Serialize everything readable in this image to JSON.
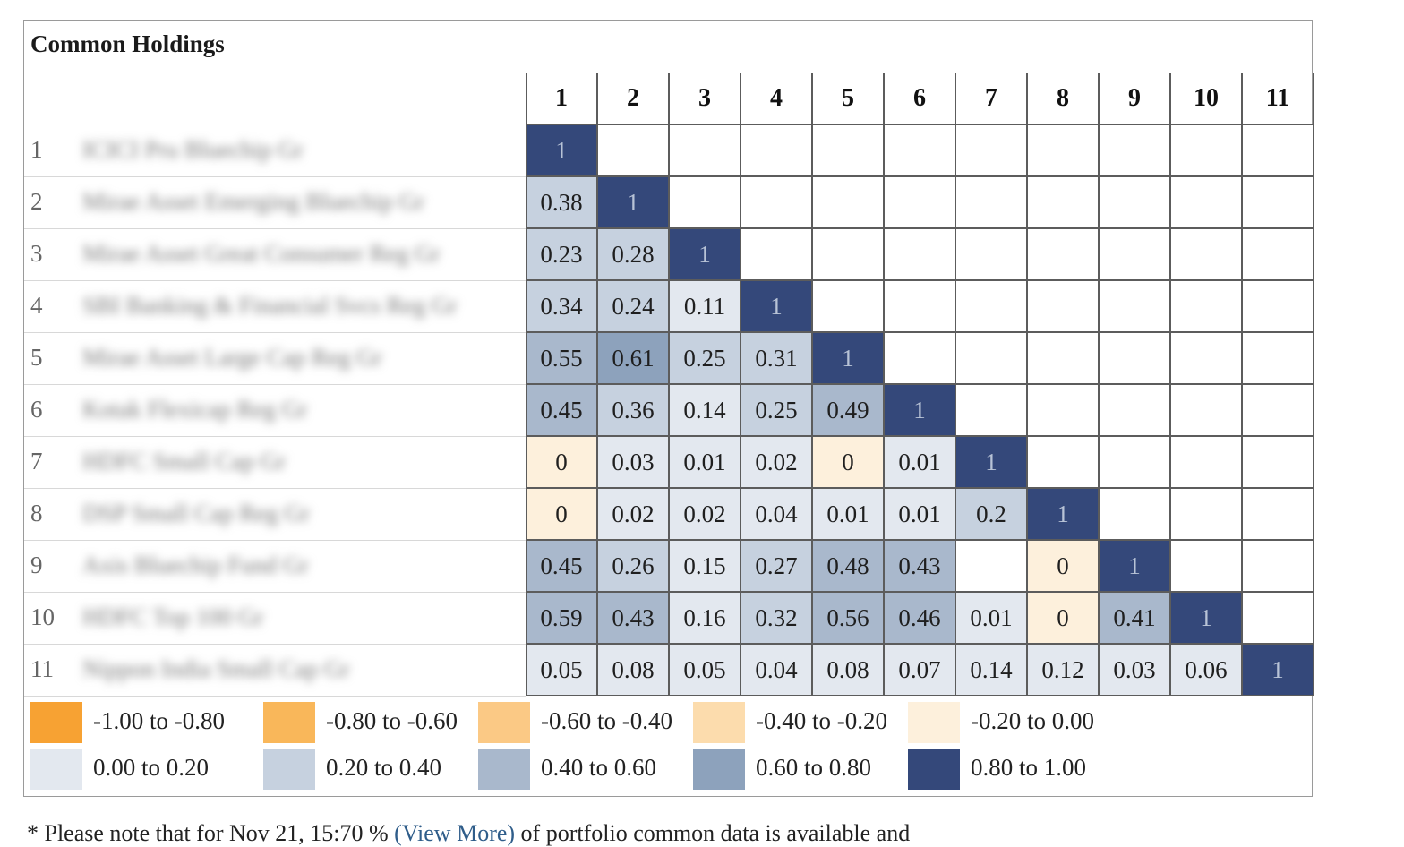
{
  "table": {
    "title": "Common Holdings"
  },
  "chart_data": {
    "type": "heatmap",
    "title": "Common Holdings",
    "columns": [
      "1",
      "2",
      "3",
      "4",
      "5",
      "6",
      "7",
      "8",
      "9",
      "10",
      "11"
    ],
    "rows": [
      {
        "num": "1",
        "label": "ICICI Pru Bluechip Gr"
      },
      {
        "num": "2",
        "label": "Mirae Asset Emerging Bluechip Gr"
      },
      {
        "num": "3",
        "label": "Mirae Asset Great Consumer Reg Gr"
      },
      {
        "num": "4",
        "label": "SBI Banking & Financial Svcs Reg Gr"
      },
      {
        "num": "5",
        "label": "Mirae Asset Large Cap Reg Gr"
      },
      {
        "num": "6",
        "label": "Kotak Flexicap Reg Gr"
      },
      {
        "num": "7",
        "label": "HDFC Small Cap Gr"
      },
      {
        "num": "8",
        "label": "DSP Small Cap Reg Gr"
      },
      {
        "num": "9",
        "label": "Axis Bluechip Fund Gr"
      },
      {
        "num": "10",
        "label": "HDFC Top 100 Gr"
      },
      {
        "num": "11",
        "label": "Nippon India Small Cap Gr"
      }
    ],
    "values": [
      [
        "1"
      ],
      [
        "0.38",
        "1"
      ],
      [
        "0.23",
        "0.28",
        "1"
      ],
      [
        "0.34",
        "0.24",
        "0.11",
        "1"
      ],
      [
        "0.55",
        "0.61",
        "0.25",
        "0.31",
        "1"
      ],
      [
        "0.45",
        "0.36",
        "0.14",
        "0.25",
        "0.49",
        "1"
      ],
      [
        "0",
        "0.03",
        "0.01",
        "0.02",
        "0",
        "0.01",
        "1"
      ],
      [
        "0",
        "0.02",
        "0.02",
        "0.04",
        "0.01",
        "0.01",
        "0.2",
        "1"
      ],
      [
        "0.45",
        "0.26",
        "0.15",
        "0.27",
        "0.48",
        "0.43",
        "",
        "0",
        "1"
      ],
      [
        "0.59",
        "0.43",
        "0.16",
        "0.32",
        "0.56",
        "0.46",
        "0.01",
        "0",
        "0.41",
        "1"
      ],
      [
        "0.05",
        "0.08",
        "0.05",
        "0.04",
        "0.08",
        "0.07",
        "0.14",
        "0.12",
        "0.03",
        "0.06",
        "1"
      ]
    ],
    "legend": [
      {
        "label": "-1.00 to -0.80",
        "color": "#f7a233"
      },
      {
        "label": "-0.80 to -0.60",
        "color": "#f9b75a"
      },
      {
        "label": "-0.60 to -0.40",
        "color": "#fbc985"
      },
      {
        "label": "-0.40 to -0.20",
        "color": "#fcdcad"
      },
      {
        "label": "-0.20 to 0.00",
        "color": "#fdf0dc"
      },
      {
        "label": "0.00 to 0.20",
        "color": "#e3e8ef"
      },
      {
        "label": "0.20 to 0.40",
        "color": "#c6d1df"
      },
      {
        "label": "0.40 to 0.60",
        "color": "#a9b8cc"
      },
      {
        "label": "0.60 to 0.80",
        "color": "#8da2bc"
      },
      {
        "label": "0.80 to 1.00",
        "color": "#34487a"
      }
    ],
    "empty_cell_color": "#ffffff"
  },
  "footnote": {
    "prefix": "* Please note that for Nov 21, 15:70 % ",
    "link": "(View More)",
    "suffix": " of portfolio common data is available and"
  }
}
